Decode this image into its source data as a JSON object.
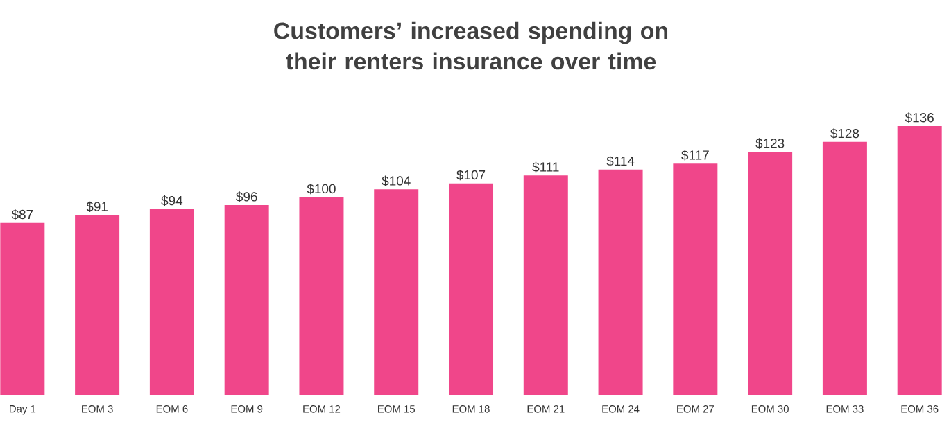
{
  "chart_data": {
    "type": "bar",
    "title": "Customers’ increased spending on their renters insurance over time",
    "categories": [
      "Day 1",
      "EOM 3",
      "EOM 6",
      "EOM 9",
      "EOM 12",
      "EOM 15",
      "EOM 18",
      "EOM 21",
      "EOM 24",
      "EOM 27",
      "EOM 30",
      "EOM 33",
      "EOM 36"
    ],
    "values": [
      87,
      91,
      94,
      96,
      100,
      104,
      107,
      111,
      114,
      117,
      123,
      128,
      136
    ],
    "value_labels": [
      "$87",
      "$91",
      "$94",
      "$96",
      "$100",
      "$104",
      "$107",
      "$111",
      "$114",
      "$117",
      "$123",
      "$128",
      "$136"
    ],
    "color": "#f0468a"
  }
}
